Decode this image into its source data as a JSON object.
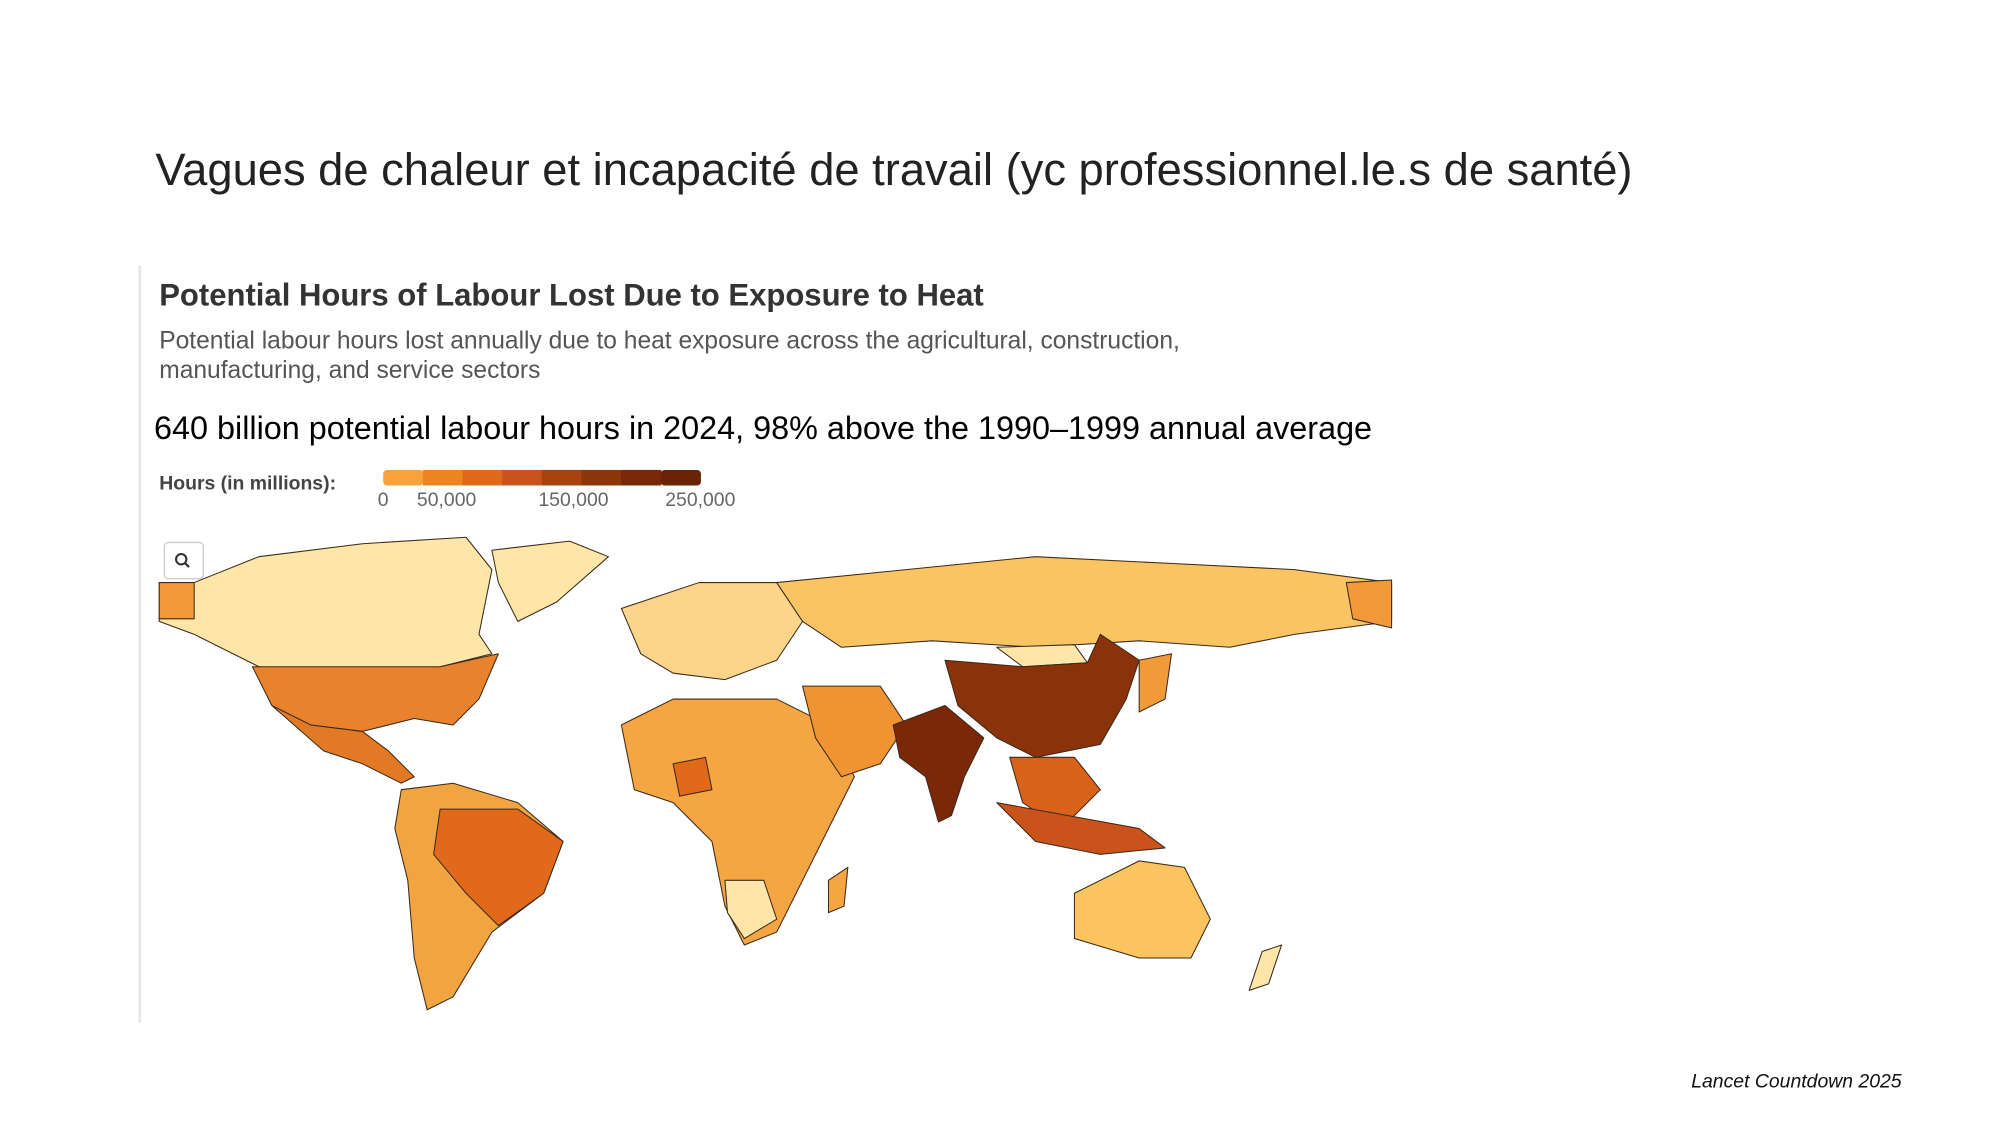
{
  "header": {
    "title": "Vagues de chaleur et incapacité de travail (yc professionnel.le.s de santé)"
  },
  "map": {
    "title": "Potential Hours of Labour Lost Due to Exposure to Heat",
    "subtitle_lines": [
      "Potential labour hours lost annually due to heat exposure across the agricultural, construction,",
      "manufacturing, and service sectors"
    ],
    "caption": "640 billion potential labour hours in 2024, 98% above the 1990–1999 annual average",
    "legend": {
      "title": "Hours (in millions):",
      "ticks": [
        0,
        {
          "value": 50000,
          "label": "50,000"
        },
        {
          "value": 150000,
          "label": "150,000"
        },
        {
          "value": 250000,
          "label": "250,000"
        }
      ],
      "colors": [
        "#f9a13a",
        "#ef8520",
        "#e06a1a",
        "#c9531a",
        "#a9420f",
        "#8e3509",
        "#7a2808",
        "#6b2306"
      ]
    }
  },
  "footer": {
    "source": "Lancet Countdown 2025"
  }
}
